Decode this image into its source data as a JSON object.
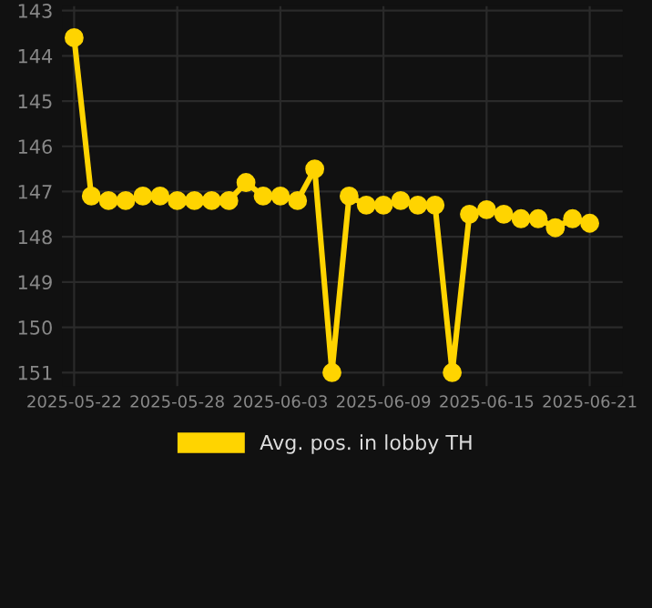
{
  "chart_data": {
    "type": "line",
    "x": [
      "2025-05-22",
      "2025-05-23",
      "2025-05-24",
      "2025-05-25",
      "2025-05-26",
      "2025-05-27",
      "2025-05-28",
      "2025-05-29",
      "2025-05-30",
      "2025-05-31",
      "2025-06-01",
      "2025-06-02",
      "2025-06-03",
      "2025-06-04",
      "2025-06-05",
      "2025-06-06",
      "2025-06-07",
      "2025-06-08",
      "2025-06-09",
      "2025-06-10",
      "2025-06-11",
      "2025-06-12",
      "2025-06-13",
      "2025-06-14",
      "2025-06-15",
      "2025-06-16",
      "2025-06-17",
      "2025-06-18",
      "2025-06-19",
      "2025-06-20",
      "2025-06-21"
    ],
    "series": [
      {
        "name": "Avg. pos. in lobby TH",
        "color": "#ffd400",
        "values": [
          143.6,
          147.1,
          147.2,
          147.2,
          147.1,
          147.1,
          147.2,
          147.2,
          147.2,
          147.2,
          146.8,
          147.1,
          147.1,
          147.2,
          146.5,
          151,
          147.1,
          147.3,
          147.3,
          147.2,
          147.3,
          147.3,
          151,
          147.5,
          147.4,
          147.5,
          147.6,
          147.6,
          147.8,
          147.6,
          147.7
        ]
      }
    ],
    "ylim": [
      151.3,
      142.9
    ],
    "yticks": [
      143,
      144,
      145,
      146,
      147,
      148,
      149,
      150,
      151
    ],
    "xlim": [
      "2025-05-21T07:00",
      "2025-06-22T22:00"
    ],
    "xticks": [
      "2025-05-22",
      "2025-05-28",
      "2025-06-03",
      "2025-06-09",
      "2025-06-15",
      "2025-06-21"
    ],
    "grid": true,
    "legend": "bottom",
    "marker": "circle",
    "line_style": "solid"
  }
}
